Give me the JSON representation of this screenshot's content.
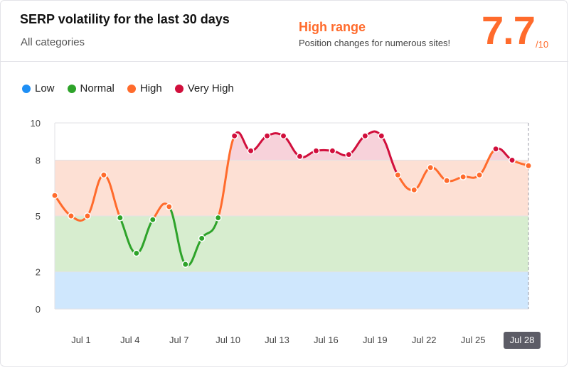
{
  "header": {
    "title": "SERP volatility for the last 30 days",
    "subtitle": "All categories",
    "range_label": "High range",
    "range_desc": "Position changes for numerous sites!",
    "score": "7.7",
    "score_max": "/10"
  },
  "colors": {
    "low": "#1e8ff5",
    "normal": "#2ea32a",
    "high": "#ff6b2c",
    "very_high": "#d10f3c",
    "band_low": "#cfe7fd",
    "band_normal": "#d7edcf",
    "band_high": "#fde0d4",
    "band_very_high": "#f7d2da"
  },
  "chart_data": {
    "type": "line",
    "legend": [
      {
        "name": "Low",
        "color": "#1e8ff5"
      },
      {
        "name": "Normal",
        "color": "#2ea32a"
      },
      {
        "name": "High",
        "color": "#ff6b2c"
      },
      {
        "name": "Very High",
        "color": "#d10f3c"
      }
    ],
    "legend_position": "top-left",
    "ylim": [
      0,
      10
    ],
    "y_ticks": [
      "0",
      "2",
      "5",
      "8",
      "10"
    ],
    "y_tick_values": [
      0,
      2,
      5,
      8,
      10
    ],
    "x_tick_labels": [
      "Jul 1",
      "Jul 4",
      "Jul 7",
      "Jul 10",
      "Jul 13",
      "Jul 16",
      "Jul 19",
      "Jul 22",
      "Jul 25",
      "Jul 28"
    ],
    "x_tick_index": [
      2,
      5,
      8,
      11,
      14,
      17,
      20,
      23,
      26,
      29
    ],
    "highlighted_x_label": "Jul 28",
    "bands": [
      {
        "name": "Low",
        "from": 0,
        "to": 2
      },
      {
        "name": "Normal",
        "from": 2,
        "to": 5
      },
      {
        "name": "High",
        "from": 5,
        "to": 8
      },
      {
        "name": "Very High",
        "from": 8,
        "to": 10
      }
    ],
    "values": [
      6.1,
      5.0,
      5.0,
      7.2,
      4.9,
      3.0,
      4.8,
      5.5,
      2.4,
      3.8,
      4.9,
      9.3,
      8.5,
      9.3,
      9.3,
      8.2,
      8.5,
      8.5,
      8.3,
      9.3,
      9.3,
      7.2,
      6.4,
      7.6,
      6.9,
      7.1,
      7.2,
      8.6,
      8.0,
      7.7
    ],
    "grid": true
  }
}
